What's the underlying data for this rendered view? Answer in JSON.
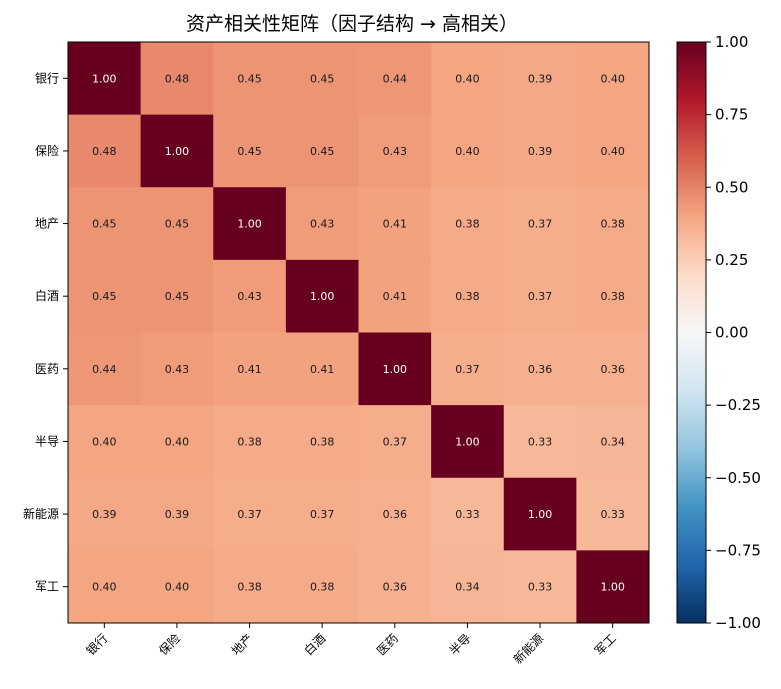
{
  "chart_data": {
    "type": "heatmap",
    "title": "资产相关性矩阵（因子结构 → 高相关）",
    "xlabel": "",
    "ylabel": "",
    "rows": [
      "银行",
      "保险",
      "地产",
      "白酒",
      "医药",
      "半导",
      "新能源",
      "军工"
    ],
    "columns": [
      "银行",
      "保险",
      "地产",
      "白酒",
      "医药",
      "半导",
      "新能源",
      "军工"
    ],
    "values": [
      [
        1.0,
        0.48,
        0.45,
        0.45,
        0.44,
        0.4,
        0.39,
        0.4
      ],
      [
        0.48,
        1.0,
        0.45,
        0.45,
        0.43,
        0.4,
        0.39,
        0.4
      ],
      [
        0.45,
        0.45,
        1.0,
        0.43,
        0.41,
        0.38,
        0.37,
        0.38
      ],
      [
        0.45,
        0.45,
        0.43,
        1.0,
        0.41,
        0.38,
        0.37,
        0.38
      ],
      [
        0.44,
        0.43,
        0.41,
        0.41,
        1.0,
        0.37,
        0.36,
        0.36
      ],
      [
        0.4,
        0.4,
        0.38,
        0.38,
        0.37,
        1.0,
        0.33,
        0.34
      ],
      [
        0.39,
        0.39,
        0.37,
        0.37,
        0.36,
        0.33,
        1.0,
        0.33
      ],
      [
        0.4,
        0.4,
        0.38,
        0.38,
        0.36,
        0.34,
        0.33,
        1.0
      ]
    ],
    "value_format": "0.00",
    "colorbar": {
      "vmin": -1.0,
      "vmax": 1.0,
      "colormap": "RdBu_r",
      "ticks": [
        "−1.00",
        "−0.75",
        "−0.50",
        "−0.25",
        "0.00",
        "0.25",
        "0.50",
        "0.75",
        "1.00"
      ],
      "tick_values": [
        -1.0,
        -0.75,
        -0.5,
        -0.25,
        0.0,
        0.25,
        0.5,
        0.75,
        1.0
      ]
    }
  }
}
